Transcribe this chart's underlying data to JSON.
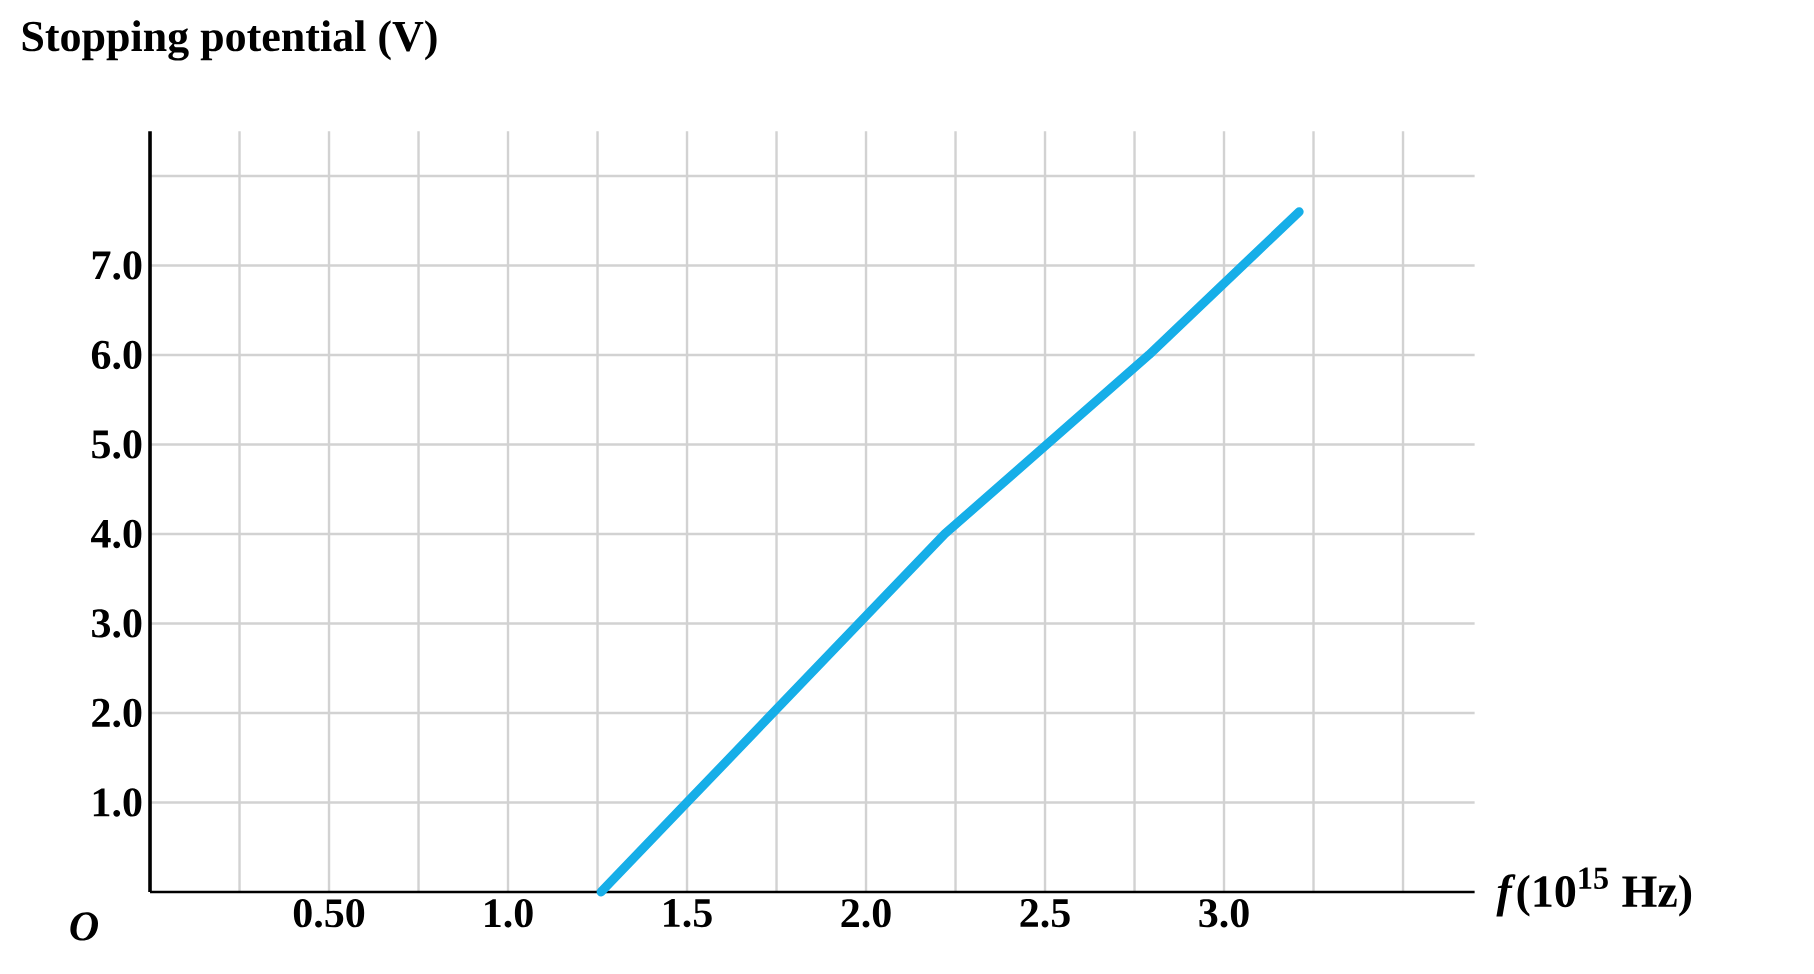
{
  "chart_data": {
    "type": "line",
    "ylabel": "Stopping potential (V)",
    "xlabel": "*f*(10$^{15}$ Hz)",
    "annotations": [
      "*O*"
    ],
    "x": [
      1.26,
      1.5,
      2.22,
      2.79,
      3.21
    ],
    "series": [
      {
        "color": "#16aee8",
        "values": [
          0,
          1,
          4,
          6,
          7.6
        ]
      }
    ],
    "xlim": [
      0,
      3.7
    ],
    "ylim": [
      0,
      8.5
    ],
    "xticks": [
      {
        "value": 0.25,
        "label": null
      },
      {
        "value": 0.5,
        "label": "0.50"
      },
      {
        "value": 0.75,
        "label": null
      },
      {
        "value": 1.0,
        "label": "1.0"
      },
      {
        "value": 1.25,
        "label": null
      },
      {
        "value": 1.5,
        "label": "1.5"
      },
      {
        "value": 1.75,
        "label": null
      },
      {
        "value": 2.0,
        "label": "2.0"
      },
      {
        "value": 2.25,
        "label": null
      },
      {
        "value": 2.5,
        "label": "2.5"
      },
      {
        "value": 2.75,
        "label": null
      },
      {
        "value": 3.0,
        "label": "3.0"
      },
      {
        "value": 3.25,
        "label": null
      },
      {
        "value": 3.5,
        "label": null
      }
    ],
    "yticks": [
      {
        "value": 1,
        "label": "1.0"
      },
      {
        "value": 2,
        "label": "2.0"
      },
      {
        "value": 3,
        "label": "3.0"
      },
      {
        "value": 4,
        "label": "4.0"
      },
      {
        "value": 5,
        "label": "5.0"
      },
      {
        "value": 6,
        "label": "6.0"
      },
      {
        "value": 7,
        "label": "7.0"
      },
      {
        "value": 8,
        "label": null
      }
    ],
    "grid": true,
    "marker": "none",
    "line_style": "solid"
  }
}
